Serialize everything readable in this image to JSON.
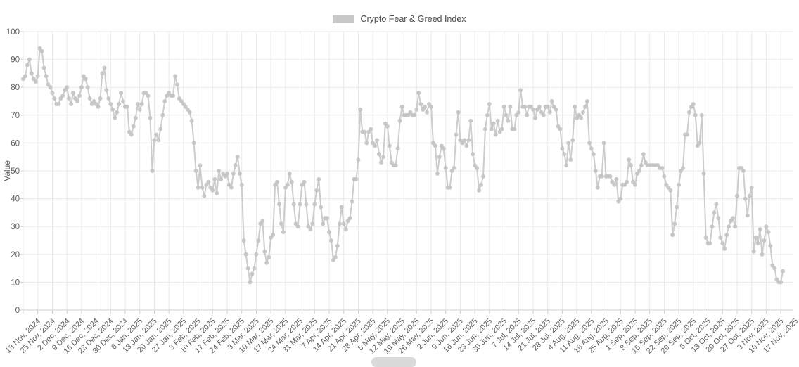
{
  "legend": {
    "label": "Crypto Fear & Greed Index",
    "swatch_color": "#c8c8c8"
  },
  "colors": {
    "background": "#ffffff",
    "grid_line": "#e9e9e9",
    "axis_line": "#cfcfcf",
    "tick_text": "#5f5f5f",
    "axis_title_text": "#5f5f5f",
    "series_line": "#cccccc",
    "series_dot": "#c4c4c4",
    "scrollbar_thumb": "#dadada"
  },
  "chart_data": {
    "type": "line",
    "title": "Crypto Fear & Greed Index",
    "xlabel": "",
    "ylabel": "Value",
    "ylim": [
      0,
      100
    ],
    "y_ticks": [
      0,
      10,
      20,
      30,
      40,
      50,
      60,
      70,
      80,
      90,
      100
    ],
    "grid": true,
    "legend_position": "top-center",
    "point_markers": true,
    "x_tick_interval_points": 7,
    "x_tick_labels": [
      "18 Nov, 2024",
      "25 Nov, 2024",
      "2 Dec, 2024",
      "9 Dec, 2024",
      "16 Dec, 2024",
      "23 Dec, 2024",
      "30 Dec, 2024",
      "6 Jan, 2025",
      "13 Jan, 2025",
      "20 Jan, 2025",
      "27 Jan, 2025",
      "3 Feb, 2025",
      "10 Feb, 2025",
      "17 Feb, 2025",
      "24 Feb, 2025",
      "3 Mar, 2025",
      "10 Mar, 2025",
      "17 Mar, 2025",
      "24 Mar, 2025",
      "31 Mar, 2025",
      "7 Apr, 2025",
      "14 Apr, 2025",
      "21 Apr, 2025",
      "28 Apr, 2025",
      "5 May, 2025",
      "12 May, 2025",
      "19 May, 2025",
      "26 May, 2025",
      "2 Jun, 2025",
      "9 Jun, 2025",
      "16 Jun, 2025",
      "23 Jun, 2025",
      "30 Jun, 2025",
      "7 Jul, 2025",
      "14 Jul, 2025",
      "21 Jul, 2025",
      "28 Jul, 2025",
      "4 Aug, 2025",
      "11 Aug, 2025",
      "18 Aug, 2025",
      "25 Aug, 2025",
      "1 Sep, 2025",
      "8 Sep, 2025",
      "15 Sep, 2025",
      "22 Sep, 2025",
      "29 Sep, 2025",
      "6 Oct, 2025",
      "13 Oct, 2025",
      "20 Oct, 2025",
      "27 Oct, 2025",
      "3 Nov, 2025",
      "10 Nov, 2025",
      "17 Nov, 2025"
    ],
    "series": [
      {
        "name": "Crypto Fear & Greed Index",
        "start_date": "18 Nov, 2024",
        "frequency": "daily",
        "values": [
          83,
          84,
          88,
          90,
          85,
          83,
          82,
          84,
          94,
          93,
          87,
          84,
          81,
          80,
          78,
          76,
          74,
          74,
          76,
          77,
          79,
          80,
          76,
          74,
          78,
          76,
          75,
          77,
          80,
          84,
          83,
          80,
          76,
          74,
          75,
          74,
          73,
          76,
          85,
          87,
          79,
          76,
          74,
          72,
          69,
          71,
          74,
          78,
          75,
          73,
          73,
          64,
          63,
          66,
          69,
          74,
          72,
          74,
          78,
          78,
          77,
          69,
          50,
          61,
          63,
          61,
          65,
          70,
          75,
          77,
          78,
          77,
          77,
          84,
          81,
          76,
          75,
          74,
          73,
          72,
          71,
          68,
          60,
          50,
          44,
          52,
          44,
          41,
          45,
          46,
          44,
          43,
          47,
          42,
          50,
          47,
          49,
          48,
          49,
          45,
          44,
          49,
          52,
          55,
          49,
          45,
          25,
          20,
          15,
          10,
          13,
          15,
          20,
          25,
          31,
          32,
          21,
          17,
          19,
          26,
          27,
          45,
          46,
          38,
          31,
          28,
          44,
          45,
          49,
          46,
          38,
          31,
          30,
          38,
          45,
          46,
          38,
          30,
          29,
          31,
          38,
          43,
          47,
          37,
          31,
          33,
          33,
          28,
          25,
          18,
          19,
          23,
          31,
          37,
          31,
          29,
          32,
          33,
          39,
          47,
          47,
          54,
          72,
          64,
          64,
          60,
          64,
          65,
          60,
          59,
          61,
          56,
          53,
          55,
          67,
          66,
          59,
          53,
          52,
          52,
          58,
          68,
          73,
          70,
          70,
          70,
          71,
          70,
          70,
          72,
          78,
          74,
          72,
          73,
          71,
          74,
          73,
          60,
          59,
          49,
          55,
          59,
          58,
          51,
          44,
          44,
          50,
          51,
          63,
          71,
          61,
          60,
          61,
          59,
          61,
          68,
          56,
          52,
          51,
          43,
          45,
          48,
          65,
          70,
          74,
          65,
          67,
          63,
          68,
          64,
          65,
          73,
          70,
          68,
          73,
          65,
          65,
          70,
          71,
          79,
          73,
          73,
          70,
          73,
          73,
          72,
          69,
          72,
          73,
          71,
          70,
          73,
          73,
          71,
          75,
          73,
          72,
          66,
          65,
          58,
          56,
          52,
          60,
          54,
          61,
          73,
          69,
          70,
          69,
          71,
          73,
          75,
          60,
          58,
          56,
          50,
          44,
          48,
          48,
          60,
          48,
          48,
          48,
          46,
          45,
          47,
          39,
          40,
          45,
          45,
          46,
          54,
          52,
          46,
          45,
          49,
          50,
          52,
          56,
          53,
          52,
          52,
          52,
          52,
          52,
          52,
          51,
          51,
          48,
          45,
          44,
          43,
          27,
          31,
          37,
          45,
          50,
          51,
          63,
          63,
          71,
          73,
          74,
          70,
          59,
          60,
          70,
          49,
          26,
          24,
          24,
          30,
          35,
          38,
          33,
          26,
          24,
          22,
          27,
          30,
          32,
          33,
          30,
          41,
          51,
          51,
          50,
          40,
          34,
          41,
          44,
          21,
          26,
          24,
          29,
          20,
          25,
          30,
          28,
          23,
          16,
          15,
          11,
          10,
          10,
          14
        ]
      }
    ]
  }
}
